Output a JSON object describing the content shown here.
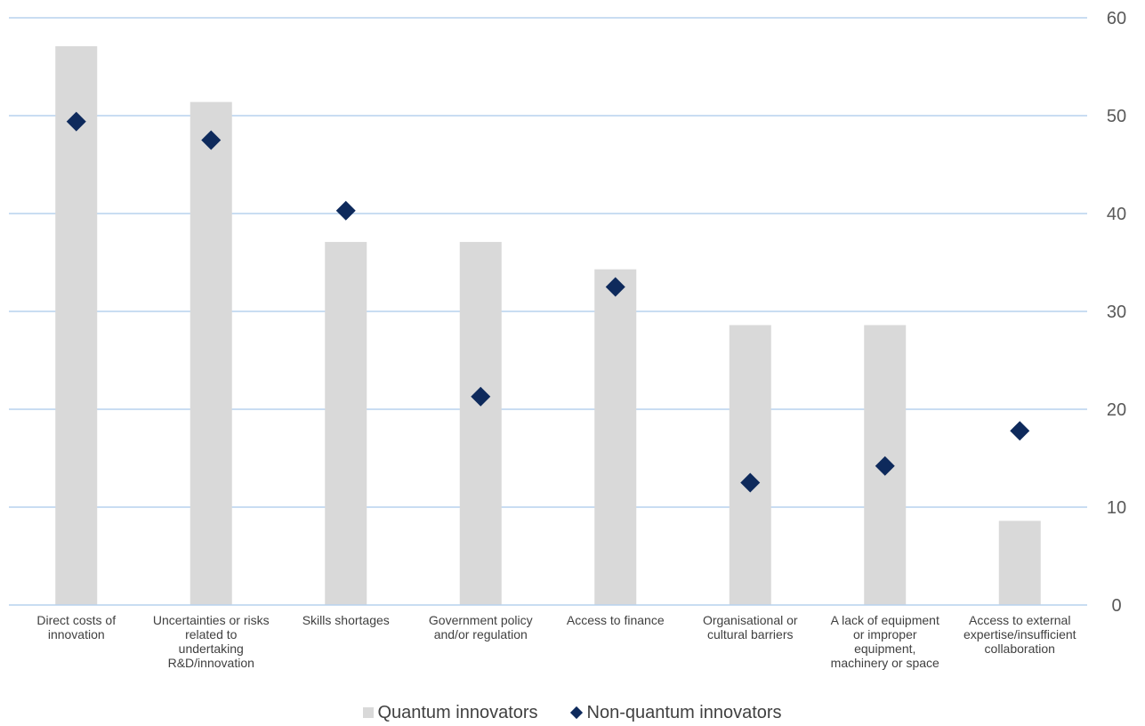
{
  "chart_data": {
    "type": "bar",
    "categories": [
      [
        "Direct costs of",
        "innovation"
      ],
      [
        "Uncertainties or risks",
        "related to",
        "undertaking",
        "R&D/innovation"
      ],
      [
        "Skills shortages"
      ],
      [
        "Government policy",
        "and/or regulation"
      ],
      [
        "Access to finance"
      ],
      [
        "Organisational or",
        "cultural barriers"
      ],
      [
        "A lack of equipment",
        "or improper",
        "equipment,",
        "machinery or space"
      ],
      [
        "Access to external",
        "expertise/insufficient",
        "collaboration"
      ]
    ],
    "series": [
      {
        "name": "Quantum innovators",
        "type": "bar",
        "color": "#d9d9d9",
        "values": [
          57.1,
          51.4,
          37.1,
          37.1,
          34.3,
          28.6,
          28.6,
          8.6
        ]
      },
      {
        "name": "Non-quantum innovators",
        "type": "scatter",
        "marker": "diamond",
        "color": "#0e2a5c",
        "values": [
          49.4,
          47.5,
          40.3,
          21.3,
          32.5,
          12.5,
          14.2,
          17.8
        ]
      }
    ],
    "yticks": [
      "0",
      "10",
      "20",
      "30",
      "40",
      "50",
      "60"
    ],
    "ylim": [
      0,
      60
    ],
    "yaxis_position": "right",
    "grid": true,
    "legend_position": "bottom-center"
  }
}
